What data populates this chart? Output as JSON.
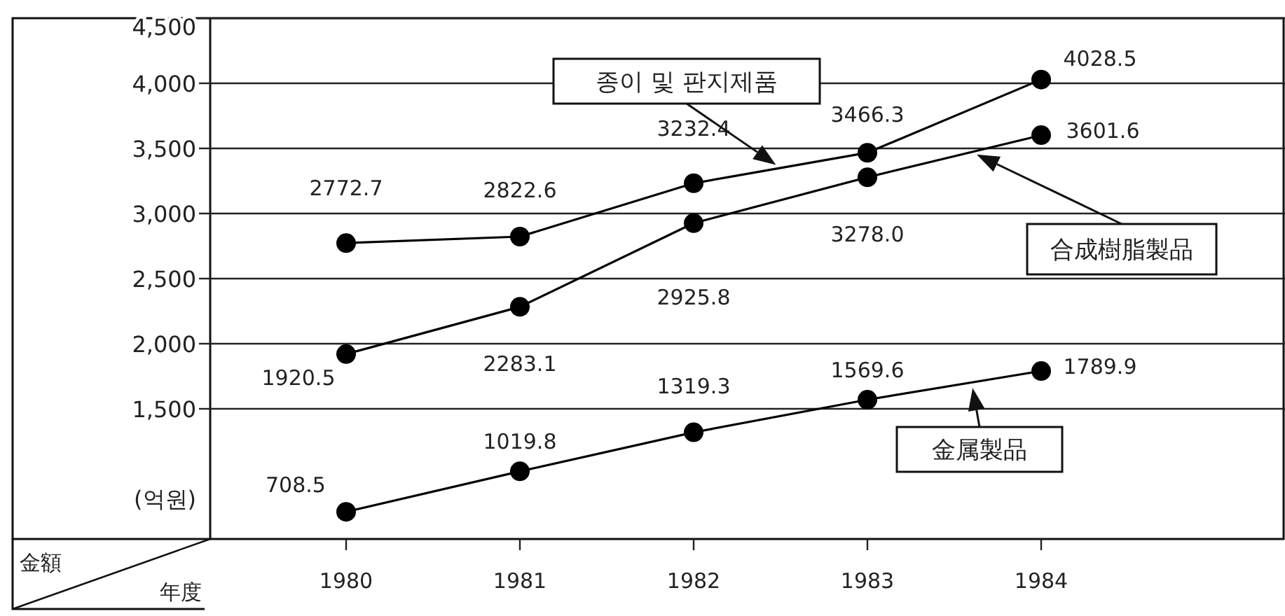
{
  "chart_data": {
    "type": "line",
    "xlabel": "年度",
    "ylabel": "金額",
    "annotations": [
      "(억원)"
    ],
    "categories": [
      "1980",
      "1981",
      "1982",
      "1983",
      "1984"
    ],
    "series": [
      {
        "name": "종이 및 판지제품",
        "color": "#000000",
        "values": [
          2772.7,
          2822.6,
          3232.4,
          3466.3,
          4028.5
        ],
        "value_labels": [
          "2772.7",
          "2822.6",
          "3232.4",
          "3466.3",
          "4028.5"
        ]
      },
      {
        "name": "合成樹脂製品",
        "color": "#000000",
        "values": [
          1920.5,
          2283.1,
          2925.8,
          3278.0,
          3601.6
        ],
        "value_labels": [
          "1920.5",
          "2283.1",
          "2925.8",
          "3278.0",
          "3601.6"
        ]
      },
      {
        "name": "金属製品",
        "color": "#000000",
        "values": [
          708.5,
          1019.8,
          1319.3,
          1569.6,
          1789.9
        ],
        "value_labels": [
          "708.5",
          "1019.8",
          "1319.3",
          "1569.6",
          "1789.9"
        ]
      }
    ],
    "ylim": [
      500,
      4500
    ],
    "yticks": [
      {
        "value": 1500,
        "label": "1,500"
      },
      {
        "value": 2000,
        "label": "2,000"
      },
      {
        "value": 2500,
        "label": "2,500"
      },
      {
        "value": 3000,
        "label": "3,000"
      },
      {
        "value": 3500,
        "label": "3,500"
      },
      {
        "value": 4000,
        "label": "4,000"
      },
      {
        "value": 4500,
        "label": "4,500"
      }
    ],
    "grid": "y",
    "legend": false,
    "marker": "circle",
    "line_style": "solid"
  }
}
